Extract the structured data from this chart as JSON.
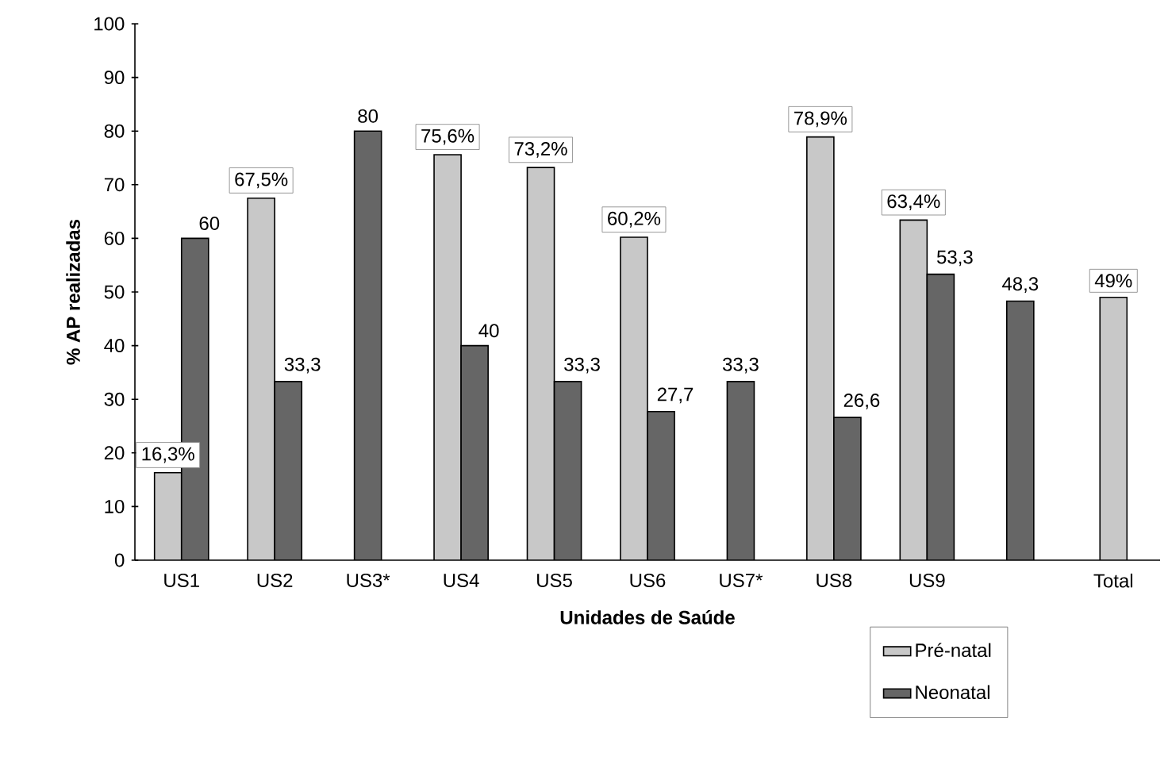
{
  "chart_data": {
    "type": "bar",
    "xlabel": "Unidades de Saúde",
    "ylabel": "% AP realizadas",
    "categories": [
      "US1",
      "US2",
      "US3*",
      "US4",
      "US5",
      "US6",
      "US7*",
      "US8",
      "US9",
      null,
      "Total"
    ],
    "series": [
      {
        "name": "Pré-natal",
        "color": "#c8c8c8",
        "values": [
          16.3,
          67.5,
          null,
          75.6,
          73.2,
          60.2,
          null,
          78.9,
          63.4,
          null,
          49
        ],
        "value_labels": [
          "16,3%",
          "67,5%",
          null,
          "75,6%",
          "73,2%",
          "60,2%",
          null,
          "78,9%",
          "63,4%",
          null,
          "49%"
        ]
      },
      {
        "name": "Neonatal",
        "color": "#666666",
        "values": [
          60,
          33.3,
          80,
          40,
          33.3,
          27.7,
          33.3,
          26.6,
          53.3,
          48.3,
          null
        ],
        "value_labels": [
          "60",
          "33,3",
          "80",
          "40",
          "33,3",
          "27,7",
          "33,3",
          "26,6",
          "53,3",
          "48,3",
          null
        ]
      }
    ],
    "ylim": [
      0,
      100
    ],
    "yticks": [
      0,
      10,
      20,
      30,
      40,
      50,
      60,
      70,
      80,
      90,
      100
    ],
    "grid": false,
    "legend": "bottom right"
  }
}
